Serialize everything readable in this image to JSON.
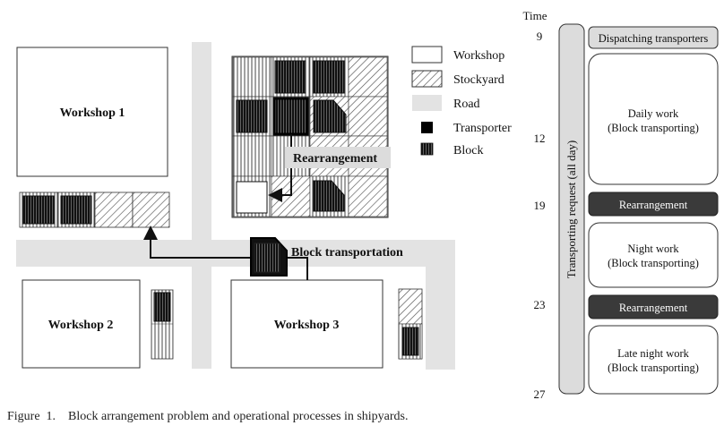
{
  "layout_map": {
    "workshops": [
      {
        "label": "Workshop 1"
      },
      {
        "label": "Workshop 2"
      },
      {
        "label": "Workshop 3"
      }
    ],
    "annotations": {
      "rearrangement": "Rearrangement",
      "block_transportation": "Block transportation"
    }
  },
  "legend": {
    "items": [
      {
        "label": "Workshop",
        "swatch": "workshop"
      },
      {
        "label": "Stockyard",
        "swatch": "stockyard"
      },
      {
        "label": "Road",
        "swatch": "road"
      },
      {
        "label": "Transporter",
        "swatch": "transporter"
      },
      {
        "label": "Block",
        "swatch": "block"
      }
    ]
  },
  "timeline": {
    "axis_title": "Time",
    "times": [
      "9",
      "12",
      "19",
      "23",
      "27"
    ],
    "request_bar_label": "Transporting request (all day)",
    "processes": [
      {
        "name": "dispatching",
        "label": "Dispatching transporters"
      },
      {
        "name": "daily-work",
        "line1": "Daily work",
        "line2": "(Block transporting)"
      },
      {
        "name": "rearrangement-1",
        "label": "Rearrangement"
      },
      {
        "name": "night-work",
        "line1": "Night work",
        "line2": "(Block transporting)"
      },
      {
        "name": "rearrangement-2",
        "label": "Rearrangement"
      },
      {
        "name": "late-night-work",
        "line1": "Late night work",
        "line2": "(Block transporting)"
      }
    ]
  },
  "colors": {
    "road": "#e3e3e3",
    "dark_box": "#3a3a3a",
    "light_box": "#dcdcdc",
    "outline": "#333333"
  },
  "caption": "Figure  1.    Block arrangement problem and operational processes in shipyards."
}
